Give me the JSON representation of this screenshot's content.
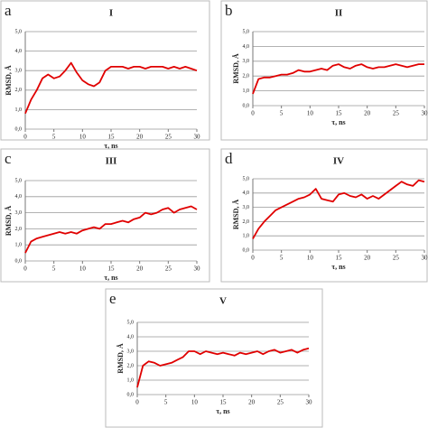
{
  "chart_data": [
    {
      "type": "line",
      "panel_label": "a",
      "title": "I",
      "y_label": "RMSD, Å",
      "x_label": "τ, ns",
      "x": [
        0,
        1,
        2,
        3,
        4,
        5,
        6,
        7,
        8,
        9,
        10,
        11,
        12,
        13,
        14,
        15,
        16,
        17,
        18,
        19,
        20,
        21,
        22,
        23,
        24,
        25,
        26,
        27,
        28,
        29,
        30
      ],
      "series": [
        {
          "color": "#e00000",
          "values": [
            0.8,
            1.5,
            2.0,
            2.6,
            2.8,
            2.6,
            2.7,
            3.0,
            3.4,
            2.9,
            2.5,
            2.3,
            2.2,
            2.4,
            3.0,
            3.2,
            3.2,
            3.2,
            3.1,
            3.2,
            3.2,
            3.1,
            3.2,
            3.2,
            3.2,
            3.1,
            3.2,
            3.1,
            3.2,
            3.1,
            3.0
          ]
        }
      ],
      "xlim": [
        0,
        30
      ],
      "xticks": [
        0,
        5,
        10,
        15,
        20,
        25,
        30
      ],
      "ylim": [
        0,
        5
      ],
      "yticks": [
        {
          "value": 0,
          "label": "0,0"
        },
        {
          "value": 1,
          "label": "1,0"
        },
        {
          "value": 2,
          "label": "2,0"
        },
        {
          "value": 3,
          "label": "3,0"
        },
        {
          "value": 4,
          "label": "4,0"
        },
        {
          "value": 5,
          "label": "5,0"
        }
      ],
      "grid": true
    },
    {
      "type": "line",
      "panel_label": "b",
      "title": "II",
      "y_label": "RMSD, Å",
      "x_label": "τ, ns",
      "x": [
        0,
        1,
        2,
        3,
        4,
        5,
        6,
        7,
        8,
        9,
        10,
        11,
        12,
        13,
        14,
        15,
        16,
        17,
        18,
        19,
        20,
        21,
        22,
        23,
        24,
        25,
        26,
        27,
        28,
        29,
        30
      ],
      "series": [
        {
          "color": "#e00000",
          "values": [
            0.8,
            1.8,
            1.9,
            1.9,
            2.0,
            2.1,
            2.1,
            2.2,
            2.4,
            2.3,
            2.3,
            2.4,
            2.5,
            2.4,
            2.7,
            2.8,
            2.6,
            2.5,
            2.7,
            2.8,
            2.6,
            2.5,
            2.6,
            2.6,
            2.7,
            2.8,
            2.7,
            2.6,
            2.7,
            2.8,
            2.8
          ]
        }
      ],
      "xlim": [
        0,
        30
      ],
      "xticks": [
        0,
        5,
        10,
        15,
        20,
        25,
        30
      ],
      "ylim": [
        0,
        5
      ],
      "yticks": [
        {
          "value": 0,
          "label": "0,0"
        },
        {
          "value": 1,
          "label": "1,0"
        },
        {
          "value": 2,
          "label": "2,0"
        },
        {
          "value": 3,
          "label": "3,0"
        },
        {
          "value": 4,
          "label": "4,0"
        },
        {
          "value": 5,
          "label": "5,0"
        }
      ],
      "grid": true
    },
    {
      "type": "line",
      "panel_label": "c",
      "title": "III",
      "y_label": "RMSD, Å",
      "x_label": "τ, ns",
      "x": [
        0,
        1,
        2,
        3,
        4,
        5,
        6,
        7,
        8,
        9,
        10,
        11,
        12,
        13,
        14,
        15,
        16,
        17,
        18,
        19,
        20,
        21,
        22,
        23,
        24,
        25,
        26,
        27,
        28,
        29,
        30
      ],
      "series": [
        {
          "color": "#e00000",
          "values": [
            0.5,
            1.2,
            1.4,
            1.5,
            1.6,
            1.7,
            1.8,
            1.7,
            1.8,
            1.7,
            1.9,
            2.0,
            2.1,
            2.0,
            2.3,
            2.3,
            2.4,
            2.5,
            2.4,
            2.6,
            2.7,
            3.0,
            2.9,
            3.0,
            3.2,
            3.3,
            3.0,
            3.2,
            3.3,
            3.4,
            3.2
          ]
        }
      ],
      "xlim": [
        0,
        30
      ],
      "xticks": [
        0,
        5,
        10,
        15,
        20,
        25,
        30
      ],
      "ylim": [
        0,
        5
      ],
      "yticks": [
        {
          "value": 0,
          "label": "0,0"
        },
        {
          "value": 1,
          "label": "1,0"
        },
        {
          "value": 2,
          "label": "2,0"
        },
        {
          "value": 3,
          "label": "3,0"
        },
        {
          "value": 4,
          "label": "4,0"
        },
        {
          "value": 5,
          "label": "5,0"
        }
      ],
      "grid": true
    },
    {
      "type": "line",
      "panel_label": "d",
      "title": "IV",
      "y_label": "RMSD, Å",
      "x_label": "τ, ns",
      "x": [
        0,
        1,
        2,
        3,
        4,
        5,
        6,
        7,
        8,
        9,
        10,
        11,
        12,
        13,
        14,
        15,
        16,
        17,
        18,
        19,
        20,
        21,
        22,
        23,
        24,
        25,
        26,
        27,
        28,
        29,
        30
      ],
      "series": [
        {
          "color": "#e00000",
          "values": [
            0.8,
            1.5,
            2.0,
            2.4,
            2.8,
            3.0,
            3.2,
            3.4,
            3.6,
            3.7,
            3.9,
            4.3,
            3.6,
            3.5,
            3.4,
            3.9,
            4.0,
            3.8,
            3.7,
            3.9,
            3.6,
            3.8,
            3.6,
            3.9,
            4.2,
            4.5,
            4.8,
            4.6,
            4.5,
            4.9,
            4.8
          ]
        }
      ],
      "xlim": [
        0,
        30
      ],
      "xticks": [
        0,
        5,
        10,
        15,
        20,
        25,
        30
      ],
      "ylim": [
        0,
        5
      ],
      "yticks": [
        {
          "value": 0,
          "label": "0,0"
        },
        {
          "value": 1,
          "label": "1,0"
        },
        {
          "value": 2,
          "label": "2,0"
        },
        {
          "value": 3,
          "label": "3,0"
        },
        {
          "value": 4,
          "label": "4,0"
        },
        {
          "value": 5,
          "label": "5,0"
        }
      ],
      "grid": true
    },
    {
      "type": "line",
      "panel_label": "e",
      "title": "V",
      "y_label": "RMSD, Å",
      "x_label": "τ, ns",
      "x": [
        0,
        1,
        2,
        3,
        4,
        5,
        6,
        7,
        8,
        9,
        10,
        11,
        12,
        13,
        14,
        15,
        16,
        17,
        18,
        19,
        20,
        21,
        22,
        23,
        24,
        25,
        26,
        27,
        28,
        29,
        30
      ],
      "series": [
        {
          "color": "#e00000",
          "values": [
            0.5,
            2.0,
            2.3,
            2.2,
            2.0,
            2.1,
            2.2,
            2.4,
            2.6,
            3.0,
            3.0,
            2.8,
            3.0,
            2.9,
            2.8,
            2.9,
            2.8,
            2.7,
            2.9,
            2.8,
            2.9,
            3.0,
            2.8,
            3.0,
            3.1,
            2.9,
            3.0,
            3.1,
            2.9,
            3.1,
            3.2
          ]
        }
      ],
      "xlim": [
        0,
        30
      ],
      "xticks": [
        0,
        5,
        10,
        15,
        20,
        25,
        30
      ],
      "ylim": [
        0,
        5
      ],
      "yticks": [
        {
          "value": 0,
          "label": "0,0"
        },
        {
          "value": 1,
          "label": "1,0"
        },
        {
          "value": 2,
          "label": "2,0"
        },
        {
          "value": 3,
          "label": "3,0"
        },
        {
          "value": 4,
          "label": "4,0"
        },
        {
          "value": 5,
          "label": "5,0"
        }
      ],
      "grid": true
    }
  ]
}
